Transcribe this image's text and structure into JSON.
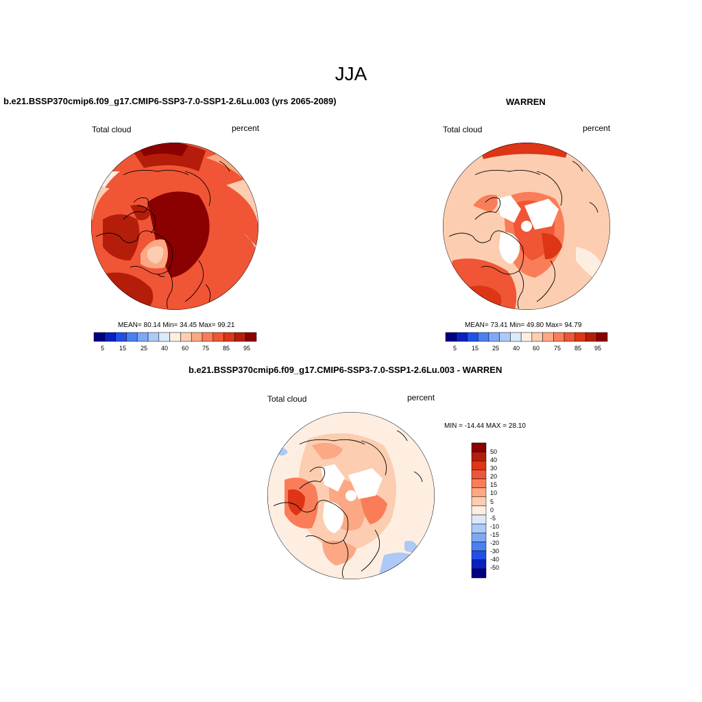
{
  "figure": {
    "title": "JJA",
    "colors": {
      "seq": [
        "#000082",
        "#0A20C2",
        "#2050E8",
        "#4A80F2",
        "#7EA8F5",
        "#ADC9F8",
        "#DCE9FB",
        "#FEEEE2",
        "#FCCDB0",
        "#FCA884",
        "#F97D58",
        "#F05535",
        "#DD3515",
        "#B41D0A",
        "#8B0000"
      ],
      "diff": [
        "#000082",
        "#0A20C2",
        "#2050E8",
        "#4A80F2",
        "#7EA8F5",
        "#ADC9F8",
        "#DCE9FB",
        "#FEEEE2",
        "#FCCDB0",
        "#FCA884",
        "#F97D58",
        "#F05535",
        "#DD3515",
        "#B41D0A",
        "#8B0000"
      ]
    }
  },
  "panels": [
    {
      "title": "b.e21.BSSP370cmip6.f09_g17.CMIP6-SSP3-7.0-SSP1-2.6Lu.003 (yrs 2065-2089)",
      "variable": "Total cloud",
      "units": "percent",
      "stats": "MEAN=  80.14  Min=  34.45  Max=  99.21",
      "colorbar_ticks": [
        "5",
        "15",
        "25",
        "40",
        "60",
        "75",
        "85",
        "95"
      ]
    },
    {
      "title": "WARREN",
      "variable": "Total cloud",
      "units": "percent",
      "stats": "MEAN=  73.41  Min=  49.80  Max=  94.79",
      "colorbar_ticks": [
        "5",
        "15",
        "25",
        "40",
        "60",
        "75",
        "85",
        "95"
      ]
    },
    {
      "title": "b.e21.BSSP370cmip6.f09_g17.CMIP6-SSP3-7.0-SSP1-2.6Lu.003 - WARREN",
      "variable": "Total cloud",
      "units": "percent",
      "stats": "MIN = -14.44 MAX =  28.10",
      "colorbar_ticks": [
        "50",
        "40",
        "30",
        "20",
        "15",
        "10",
        "5",
        "0",
        "-5",
        "-10",
        "-15",
        "-20",
        "-30",
        "-40",
        "-50"
      ]
    }
  ]
}
